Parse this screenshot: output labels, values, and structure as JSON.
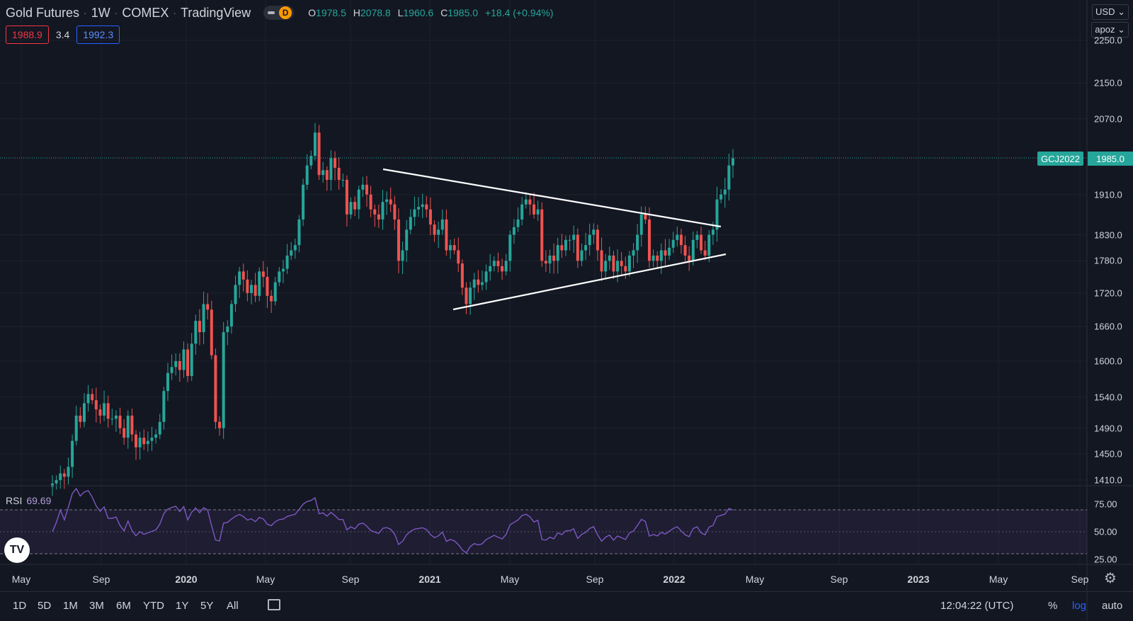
{
  "header": {
    "symbol": "Gold Futures",
    "interval": "1W",
    "exchange": "COMEX",
    "source": "TradingView",
    "badge_letter": "D",
    "ohlc": {
      "o_label": "O",
      "o": "1978.5",
      "h_label": "H",
      "h": "2078.8",
      "l_label": "L",
      "l": "1960.6",
      "c_label": "C",
      "c": "1985.0",
      "change": "+18.4 (+0.94%)"
    }
  },
  "quote": {
    "bid": "1988.9",
    "spread": "3.4",
    "ask": "1992.3"
  },
  "axis_controls": {
    "currency": "USD ⌄",
    "unit": "apoz ⌄"
  },
  "price_tag": {
    "symbol": "GCJ2022",
    "price": "1985.0"
  },
  "rsi": {
    "label": "RSI",
    "value": "69.69"
  },
  "bottom_bar": {
    "ranges": [
      "1D",
      "5D",
      "1M",
      "3M",
      "6M",
      "YTD",
      "1Y",
      "5Y",
      "All"
    ],
    "clock": "12:04:22 (UTC)",
    "percent": "%",
    "log": "log",
    "auto": "auto"
  },
  "logo": "TV",
  "colors": {
    "background": "#131722",
    "up": "#26a69a",
    "down": "#ef5350",
    "rsi": "#7e57c2",
    "trendline": "#ffffff"
  },
  "chart_data": {
    "type": "candlestick",
    "title": "Gold Futures · 1W · COMEX",
    "scale": "log",
    "ylim": [
      1400,
      2300
    ],
    "y_ticks": [
      2250,
      2150,
      2070,
      1910,
      1830,
      1780,
      1720,
      1660,
      1600,
      1540,
      1490,
      1450,
      1410
    ],
    "y_top_partial": "2350.0",
    "x_ticks": [
      "May",
      "Sep",
      "2020",
      "May",
      "Sep",
      "2021",
      "May",
      "Sep",
      "2022",
      "May",
      "Sep",
      "2023",
      "May",
      "Sep"
    ],
    "last_price": 1985.0,
    "closes": [
      1405,
      1410,
      1420,
      1415,
      1430,
      1470,
      1510,
      1500,
      1530,
      1545,
      1535,
      1520,
      1510,
      1530,
      1505,
      1505,
      1510,
      1490,
      1475,
      1510,
      1480,
      1460,
      1475,
      1465,
      1470,
      1475,
      1480,
      1500,
      1550,
      1580,
      1590,
      1600,
      1585,
      1620,
      1575,
      1630,
      1670,
      1650,
      1700,
      1690,
      1610,
      1500,
      1490,
      1650,
      1660,
      1700,
      1735,
      1760,
      1745,
      1720,
      1735,
      1715,
      1760,
      1750,
      1715,
      1705,
      1740,
      1760,
      1765,
      1790,
      1800,
      1810,
      1860,
      1930,
      1970,
      1990,
      2040,
      1950,
      1960,
      1940,
      1985,
      1965,
      1940,
      1940,
      1870,
      1895,
      1880,
      1920,
      1930,
      1910,
      1880,
      1870,
      1860,
      1895,
      1900,
      1890,
      1860,
      1780,
      1800,
      1840,
      1865,
      1880,
      1885,
      1890,
      1880,
      1850,
      1830,
      1840,
      1860,
      1800,
      1810,
      1800,
      1775,
      1730,
      1700,
      1730,
      1745,
      1735,
      1740,
      1760,
      1770,
      1780,
      1770,
      1760,
      1780,
      1830,
      1845,
      1860,
      1890,
      1900,
      1890,
      1870,
      1880,
      1780,
      1775,
      1790,
      1780,
      1810,
      1800,
      1820,
      1820,
      1830,
      1780,
      1800,
      1810,
      1830,
      1840,
      1800,
      1760,
      1780,
      1790,
      1760,
      1780,
      1770,
      1760,
      1790,
      1800,
      1830,
      1870,
      1860,
      1780,
      1790,
      1780,
      1800,
      1790,
      1805,
      1820,
      1830,
      1810,
      1790,
      1780,
      1820,
      1830,
      1800,
      1790,
      1830,
      1840,
      1900,
      1910,
      1920,
      1970,
      1985
    ],
    "trendlines": [
      {
        "from": [
          "2020-11",
          1980
        ],
        "to": [
          "2022-03",
          1845
        ]
      },
      {
        "from": [
          "2021-03",
          1690
        ],
        "to": [
          "2022-03",
          1785
        ]
      }
    ],
    "rsi": {
      "ylim": [
        25,
        75
      ],
      "ticks": [
        75,
        50,
        25
      ],
      "bands": [
        30,
        70
      ],
      "value": 69.69
    }
  }
}
